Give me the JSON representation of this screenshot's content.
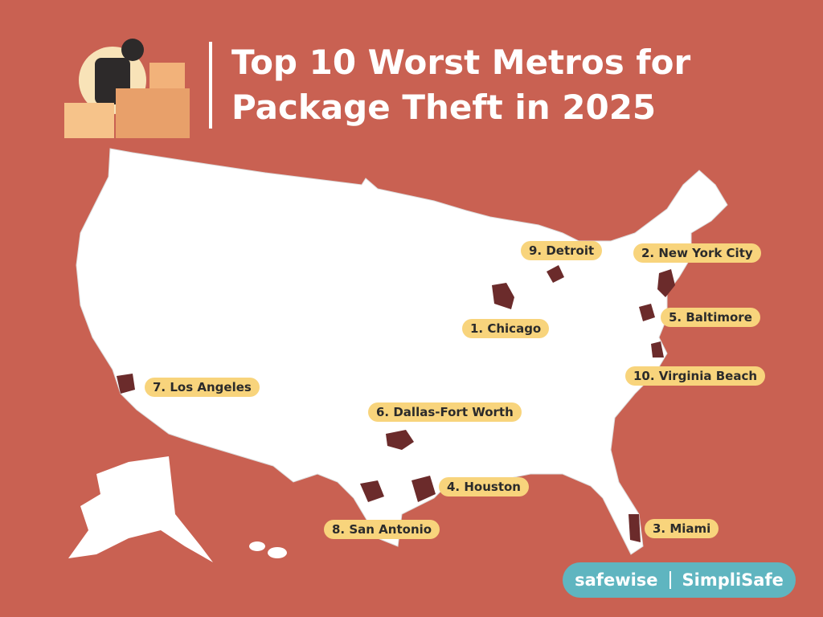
{
  "header": {
    "title_lines": [
      "Top 10 Worst Metros for",
      "Package Theft in 2025"
    ]
  },
  "metros": [
    {
      "label": "1. Chicago"
    },
    {
      "label": "2. New York City"
    },
    {
      "label": "3. Miami"
    },
    {
      "label": "4. Houston"
    },
    {
      "label": "5. Baltimore"
    },
    {
      "label": "6. Dallas-Fort Worth"
    },
    {
      "label": "7. Los Angeles"
    },
    {
      "label": "8. San Antonio"
    },
    {
      "label": "9. Detroit"
    },
    {
      "label": "10. Virginia Beach"
    }
  ],
  "footer": {
    "brand_left": "safewise",
    "brand_right": "SimpliSafe"
  }
}
